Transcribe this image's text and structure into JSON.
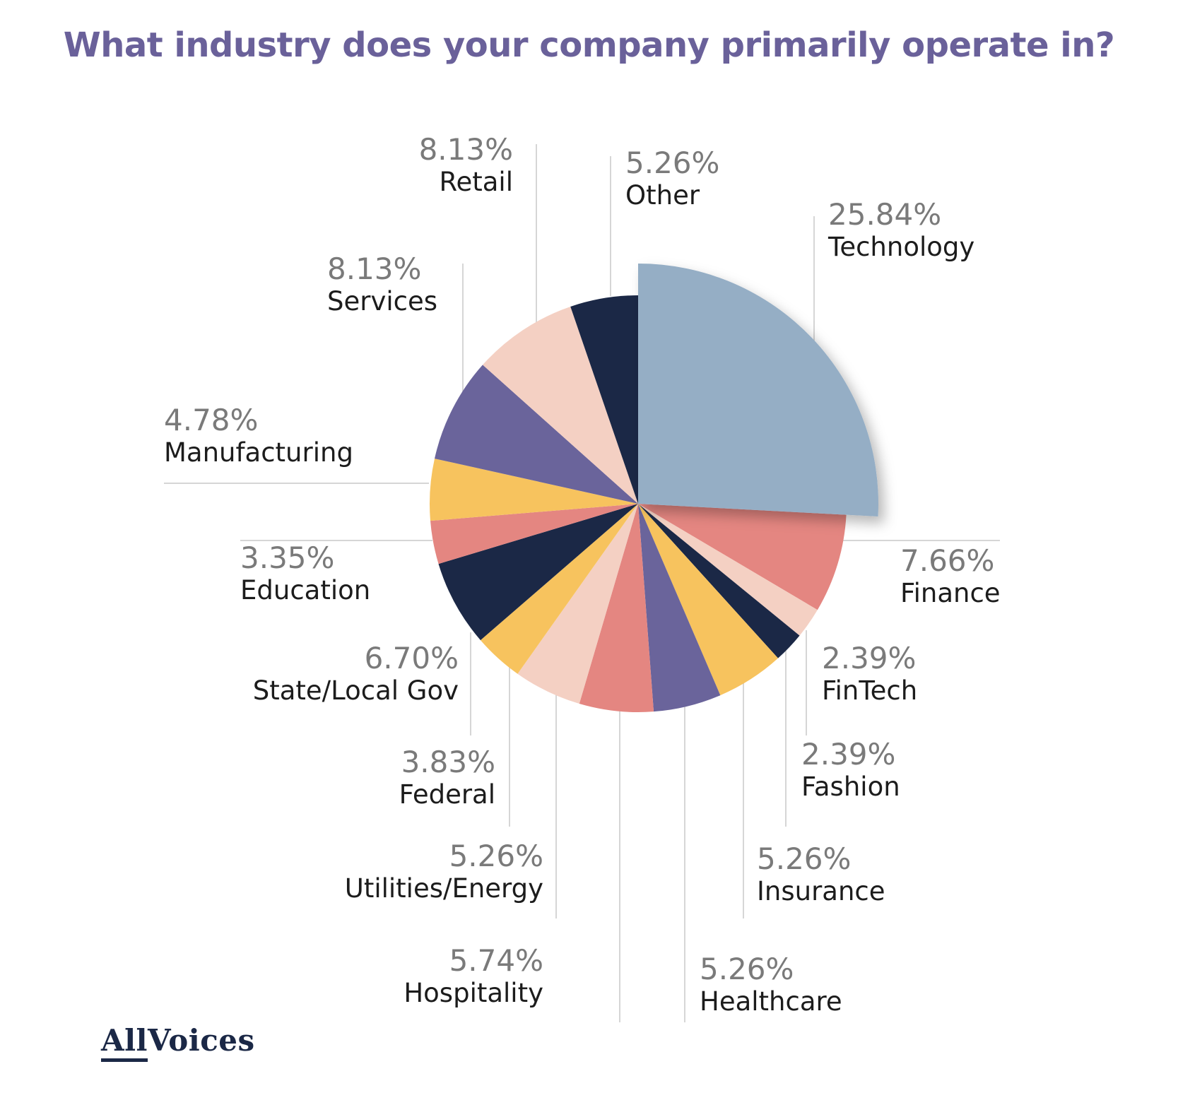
{
  "colors": {
    "title": "#6a619a",
    "percent_text": "#7a7a7a",
    "category_text": "#1c1c1c"
  },
  "chart_data": {
    "type": "pie",
    "title": "What industry does your company primarily operate in?",
    "unit": "%",
    "highlighted": "Technology",
    "slices": [
      {
        "label": "Technology",
        "value": 25.84,
        "value_label": "25.84%",
        "color": "#95aec5"
      },
      {
        "label": "Finance",
        "value": 7.66,
        "value_label": "7.66%",
        "color": "#e48681"
      },
      {
        "label": "FinTech",
        "value": 2.39,
        "value_label": "2.39%",
        "color": "#f4d0c3"
      },
      {
        "label": "Fashion",
        "value": 2.39,
        "value_label": "2.39%",
        "color": "#1b2846"
      },
      {
        "label": "Insurance",
        "value": 5.26,
        "value_label": "5.26%",
        "color": "#f7c35e"
      },
      {
        "label": "Healthcare",
        "value": 5.26,
        "value_label": "5.26%",
        "color": "#6a649b"
      },
      {
        "label": "Hospitality",
        "value": 5.74,
        "value_label": "5.74%",
        "color": "#e48681"
      },
      {
        "label": "Utilities/Energy",
        "value": 5.26,
        "value_label": "5.26%",
        "color": "#f4d0c3"
      },
      {
        "label": "Federal",
        "value": 3.83,
        "value_label": "3.83%",
        "color": "#f7c35e"
      },
      {
        "label": "State/Local Gov",
        "value": 6.7,
        "value_label": "6.70%",
        "color": "#1b2846"
      },
      {
        "label": "Education",
        "value": 3.35,
        "value_label": "3.35%",
        "color": "#e48681"
      },
      {
        "label": "Manufacturing",
        "value": 4.78,
        "value_label": "4.78%",
        "color": "#f7c35e"
      },
      {
        "label": "Services",
        "value": 8.13,
        "value_label": "8.13%",
        "color": "#6a649b"
      },
      {
        "label": "Retail",
        "value": 8.13,
        "value_label": "8.13%",
        "color": "#f4d0c3"
      },
      {
        "label": "Other",
        "value": 5.26,
        "value_label": "5.26%",
        "color": "#1b2846"
      }
    ]
  },
  "logo": {
    "part1": "All",
    "part2": "Voices"
  }
}
